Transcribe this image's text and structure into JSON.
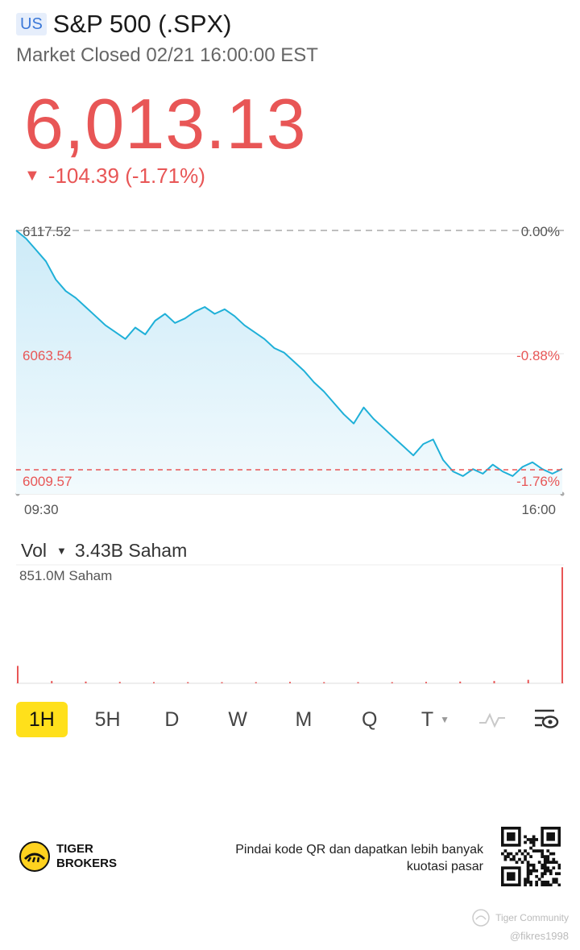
{
  "header": {
    "market_badge": "US",
    "title": "S&P 500 (.SPX)",
    "status": "Market Closed 02/21 16:00:00 EST"
  },
  "quote": {
    "price": "6,013.13",
    "arrow": "▼",
    "change": "-104.39 (-1.71%)"
  },
  "chart_data": {
    "type": "line",
    "series": [
      {
        "values": [
          6117.52,
          6114,
          6109,
          6104,
          6096,
          6091,
          6088,
          6084,
          6080,
          6076,
          6073,
          6070,
          6075,
          6072,
          6078,
          6081,
          6077,
          6079,
          6082,
          6084,
          6081,
          6083,
          6080,
          6076,
          6073,
          6070,
          6066,
          6064,
          6060,
          6056,
          6051,
          6047,
          6042,
          6037,
          6033,
          6040,
          6035,
          6031,
          6027,
          6023,
          6019,
          6024,
          6026,
          6017,
          6012,
          6010,
          6013,
          6011,
          6015,
          6012,
          6010,
          6014,
          6016,
          6013,
          6011,
          6013.13
        ]
      }
    ],
    "xlim_labels": [
      "09:30",
      "16:00"
    ],
    "ylim": [
      6004,
      6120
    ],
    "reference_lines": [
      {
        "value": 6117.52,
        "label": "6117.52",
        "pct": "0.00%"
      },
      {
        "value": 6063.54,
        "label": "6063.54",
        "pct": "-0.88%"
      },
      {
        "value": 6009.57,
        "label": "6009.57",
        "pct": "-1.76%"
      }
    ],
    "colors": {
      "line": "#1fb0d8",
      "fill": "#d9f1fb",
      "down": "#e85656"
    }
  },
  "volume": {
    "label": "Vol",
    "caret": "▼",
    "total": "3.43B Saham",
    "max_label": "851.0M Saham",
    "values": [
      0.15,
      0.02,
      0.015,
      0.012,
      0.01,
      0.01,
      0.01,
      0.01,
      0.012,
      0.01,
      0.01,
      0.01,
      0.012,
      0.015,
      0.02,
      0.03,
      1.0
    ]
  },
  "periods": {
    "items": [
      "1H",
      "5H",
      "D",
      "W",
      "M",
      "Q",
      "T"
    ],
    "active": "1H",
    "t_caret": "▼",
    "icons": [
      "line-style-icon",
      "chart-settings-icon"
    ]
  },
  "footer": {
    "brand_line1": "TIGER",
    "brand_line2": "BROKERS",
    "qr_text": "Pindai kode QR dan dapatkan lebih banyak kuotasi pasar"
  },
  "watermark": {
    "community": "Tiger Community",
    "user": "@fikres1998"
  }
}
